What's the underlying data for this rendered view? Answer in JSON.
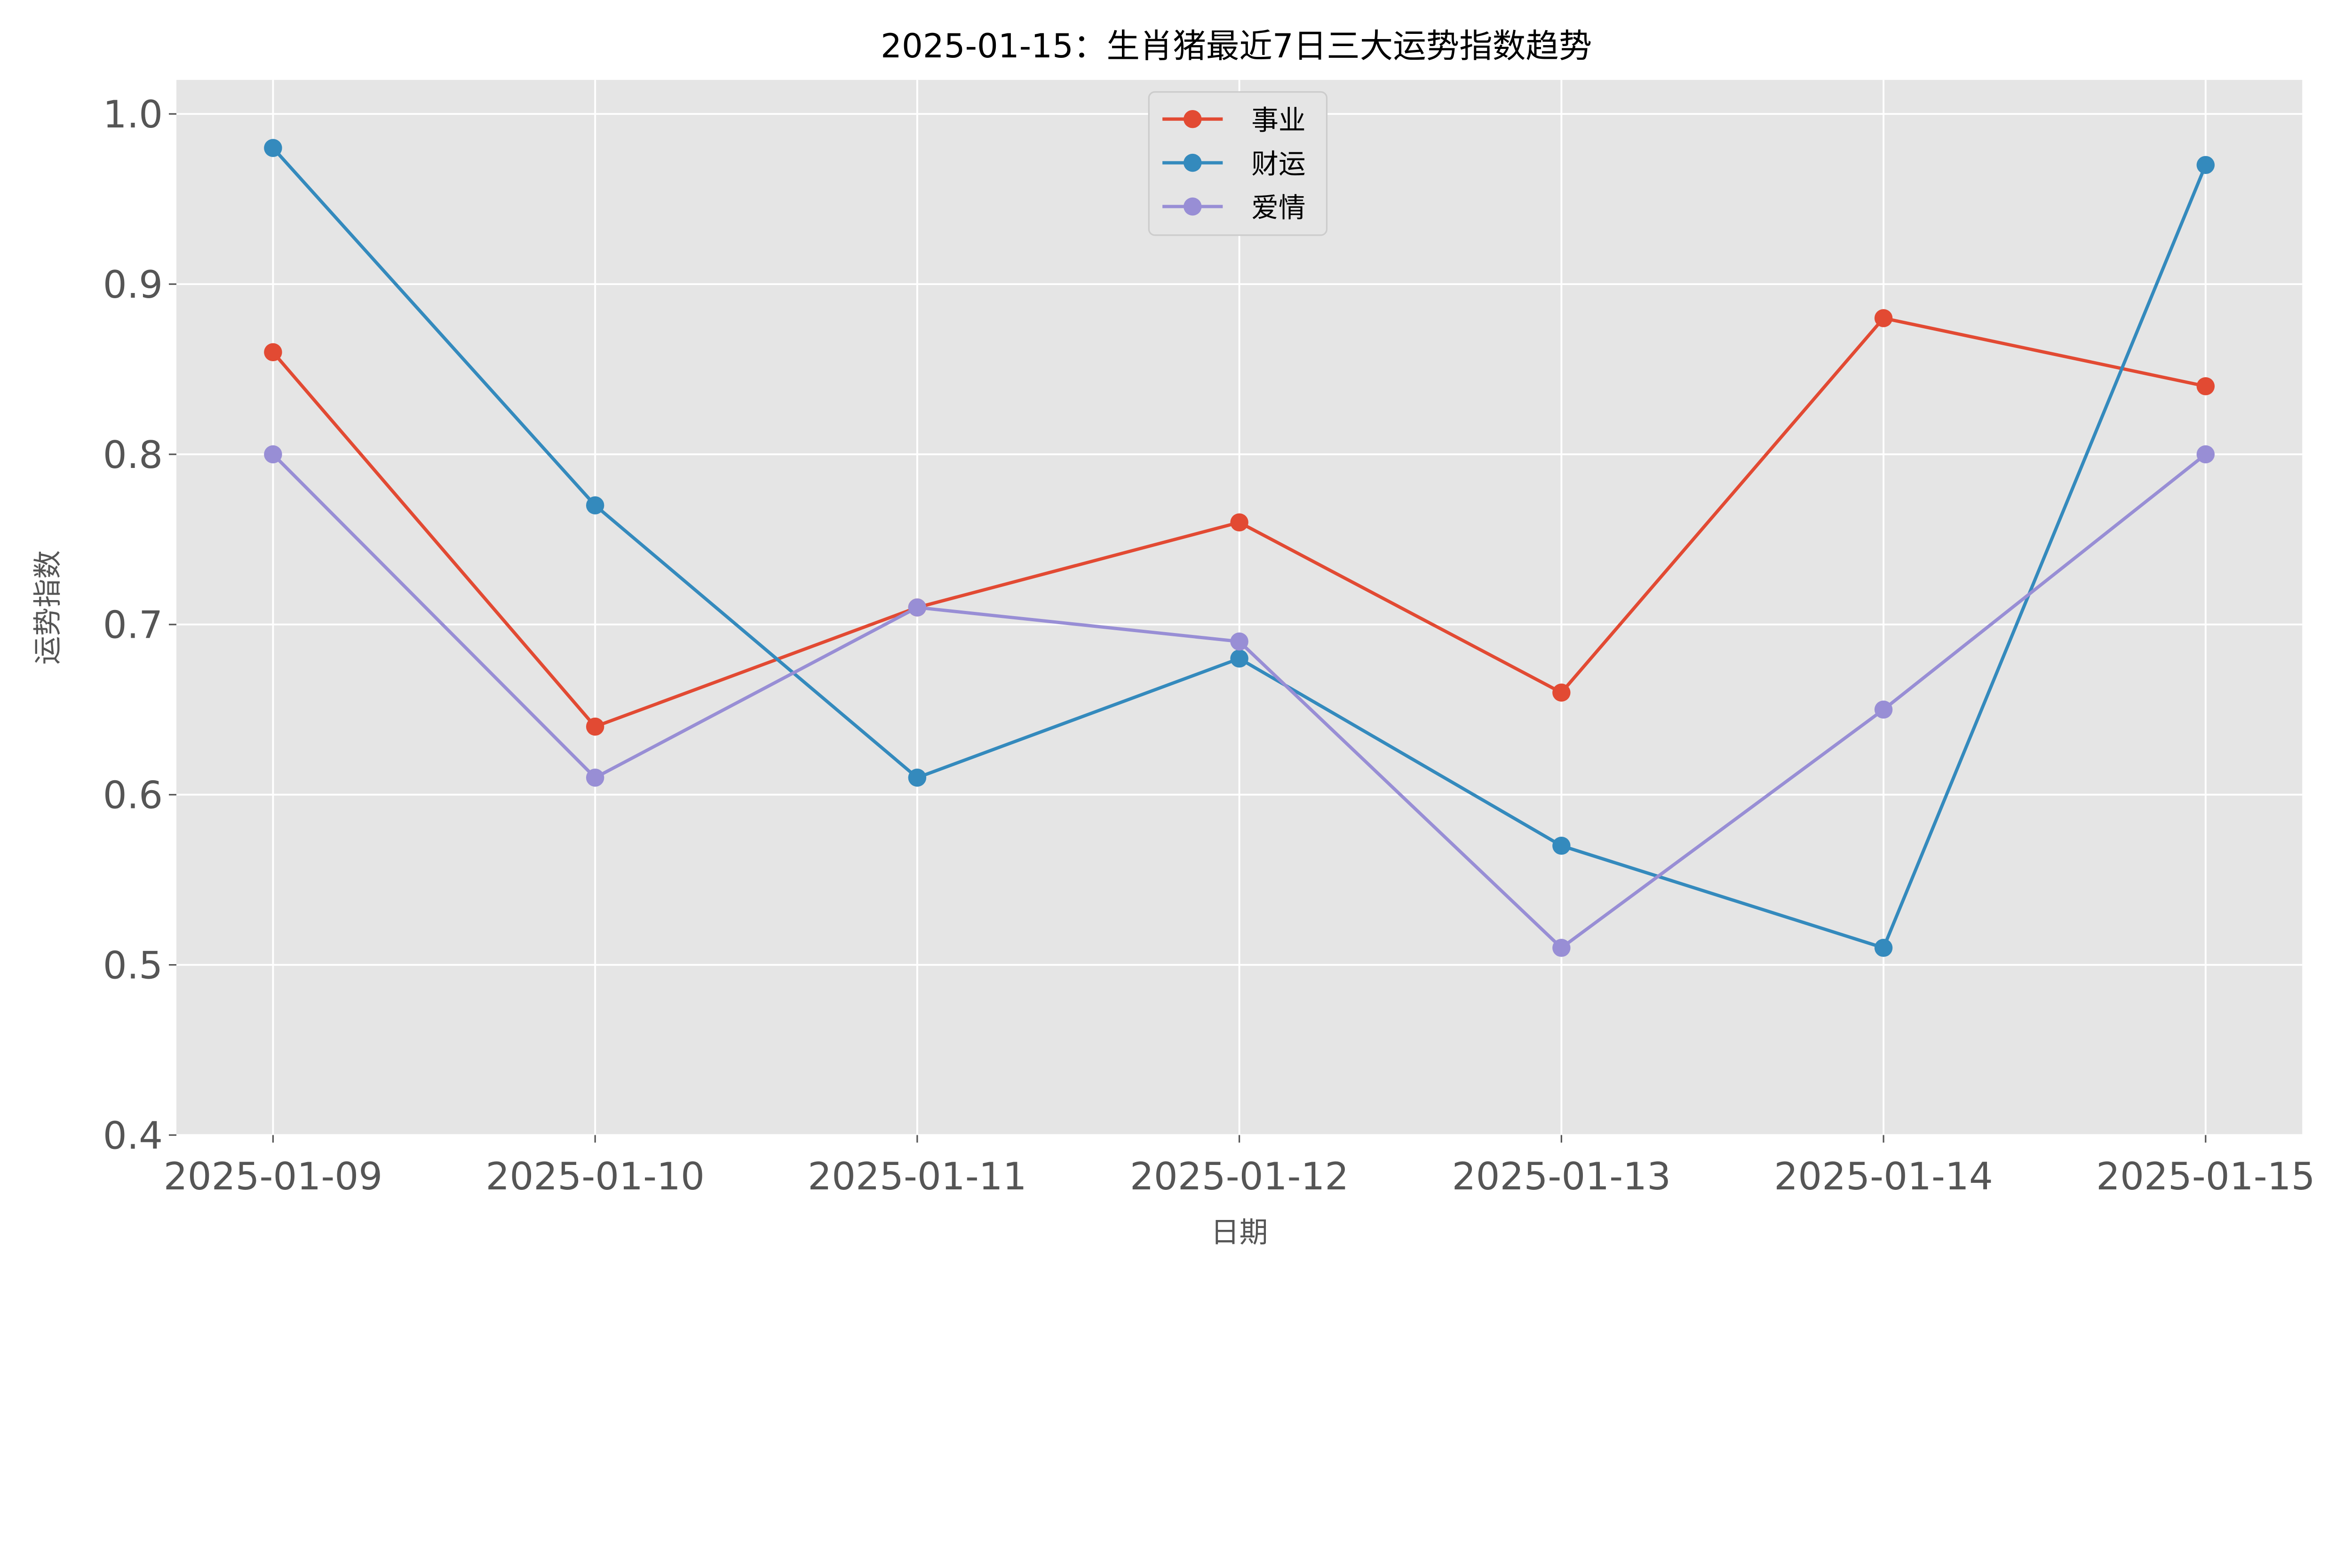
{
  "chart_data": {
    "type": "line",
    "title": "2025-01-15：生肖猪最近7日三大运势指数趋势",
    "xlabel": "日期",
    "ylabel": "运势指数",
    "categories": [
      "2025-01-09",
      "2025-01-10",
      "2025-01-11",
      "2025-01-12",
      "2025-01-13",
      "2025-01-14",
      "2025-01-15"
    ],
    "ylim": [
      0.4,
      1.02
    ],
    "yticks": [
      "0.4",
      "0.5",
      "0.6",
      "0.7",
      "0.8",
      "0.9",
      "1.0"
    ],
    "grid": true,
    "legend": "top-center",
    "background": "#e5e5e5",
    "series": [
      {
        "name": "事业",
        "color": "#e24a33",
        "values": [
          0.86,
          0.64,
          0.71,
          0.76,
          0.66,
          0.88,
          0.84
        ]
      },
      {
        "name": "财运",
        "color": "#348abd",
        "values": [
          0.98,
          0.77,
          0.61,
          0.68,
          0.57,
          0.51,
          0.97
        ]
      },
      {
        "name": "爱情",
        "color": "#988ed5",
        "values": [
          0.8,
          0.61,
          0.71,
          0.69,
          0.51,
          0.65,
          0.8
        ]
      }
    ]
  }
}
